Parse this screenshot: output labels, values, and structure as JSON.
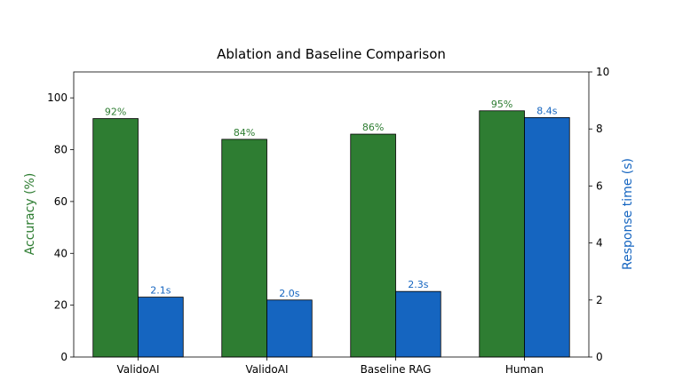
{
  "chart_data": {
    "type": "bar",
    "title": "Ablation and Baseline Comparison",
    "categories": [
      "ValidoAI",
      "ValidoAI",
      "Baseline RAG",
      "Human"
    ],
    "series": [
      {
        "axis": "left",
        "color": "#2e7d32",
        "values": [
          92,
          84,
          86,
          95
        ],
        "labels": [
          "92%",
          "84%",
          "86%",
          "95%"
        ]
      },
      {
        "axis": "right",
        "color": "#1565c0",
        "values": [
          2.1,
          2.0,
          2.3,
          8.4
        ],
        "labels": [
          "2.1s",
          "2.0s",
          "2.3s",
          "8.4s"
        ]
      }
    ],
    "y_left": {
      "label": "Accuracy (%)",
      "color": "#2e7d32",
      "lim": [
        0,
        110
      ],
      "ticks": [
        0,
        20,
        40,
        60,
        80,
        100
      ]
    },
    "y_right": {
      "label": "Response time (s)",
      "color": "#1565c0",
      "lim": [
        0,
        10
      ],
      "ticks": [
        0,
        2,
        4,
        6,
        8,
        10
      ]
    },
    "grid": false,
    "legend": "none"
  }
}
